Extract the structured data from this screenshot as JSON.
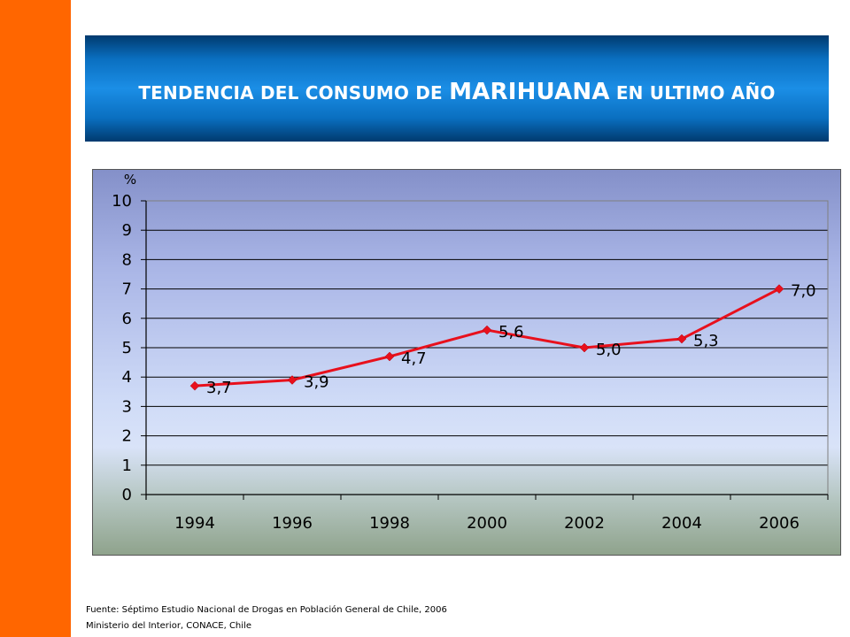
{
  "banner": {
    "title_part1": "TENDENCIA DEL CONSUMO DE ",
    "title_highlight": "MARIHUANA",
    "title_part2": " EN ULTIMO AÑO"
  },
  "colors": {
    "side_bar": "#ff6600",
    "banner": "#0a6fc0",
    "series_line": "#e8101c"
  },
  "chart_data": {
    "type": "line",
    "title": "",
    "xlabel": "",
    "ylabel": "%",
    "categories": [
      "1994",
      "1996",
      "1998",
      "2000",
      "2002",
      "2004",
      "2006"
    ],
    "series": [
      {
        "values": [
          3.7,
          3.9,
          4.7,
          5.6,
          5.0,
          5.3,
          7.0
        ],
        "data_labels": [
          "3,7",
          "3,9",
          "4,7",
          "5,6",
          "5,0",
          "5,3",
          "7,0"
        ]
      }
    ],
    "ylim": [
      0,
      10
    ],
    "yticks": [
      "0",
      "1",
      "2",
      "3",
      "4",
      "5",
      "6",
      "7",
      "8",
      "9",
      "10"
    ],
    "grid": "horizontal",
    "legend": "none"
  },
  "footer": {
    "source_line1": "Fuente: Séptimo Estudio Nacional de Drogas en Población General de Chile, 2006",
    "source_line2": "Ministerio del Interior, CONACE, Chile"
  }
}
